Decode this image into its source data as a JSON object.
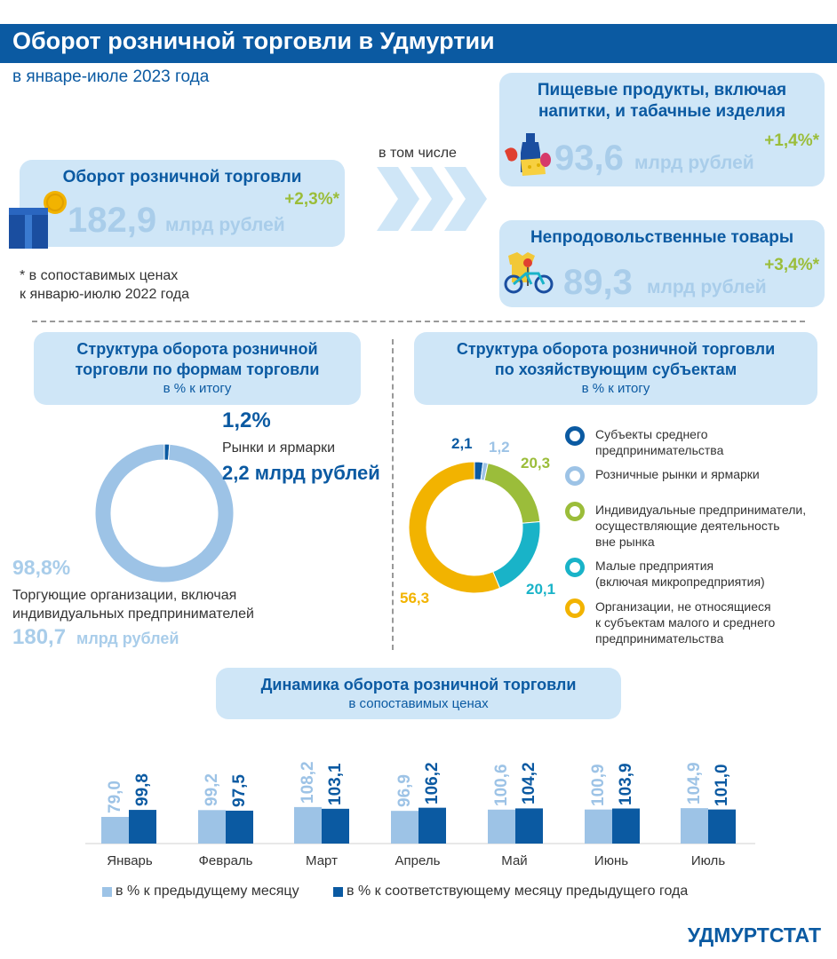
{
  "header": {
    "title": "Оборот розничной торговли в Удмуртии",
    "subtitle": "в январе-июле 2023 года"
  },
  "total": {
    "title": "Оборот розничной торговли",
    "value": "182,9",
    "unit": "млрд рублей",
    "change": "+2,3%*"
  },
  "in_number": "в том числе",
  "food": {
    "title_line1": "Пищевые продукты, включая",
    "title_line2": "напитки, и табачные изделия",
    "value": "93,6",
    "unit": "млрд рублей",
    "change": "+1,4%*"
  },
  "nonfood": {
    "title": "Непродовольственные товары",
    "value": "89,3",
    "unit": "млрд рублей",
    "change": "+3,4%*"
  },
  "footnote": {
    "line1": "* в сопоставимых ценах",
    "line2": "к январю-июлю 2022 года"
  },
  "forms": {
    "title_line1": "Структура оборота розничной",
    "title_line2": "торговли по формам торговли",
    "sub": "в % к итогу",
    "markets_pct": "1,2%",
    "markets_label": "Рынки и ярмарки",
    "markets_value": "2,2 млрд рублей",
    "orgs_pct": "98,8%",
    "orgs_label_line1": "Торгующие организации, включая",
    "orgs_label_line2": "индивидуальных предпринимателей",
    "orgs_value_num": "180,7",
    "orgs_value_unit": "млрд рублей"
  },
  "subjects": {
    "title_line1": "Структура оборота розничной торговли",
    "title_line2": "по хозяйствующим субъектам",
    "sub": "в % к итогу",
    "legend": [
      {
        "line1": "Субъекты среднего",
        "line2": "предпринимательства",
        "line3": "",
        "color": "#0b5aa2"
      },
      {
        "line1": "Розничные рынки и ярмарки",
        "line2": "",
        "line3": "",
        "color": "#9dc3e6"
      },
      {
        "line1": "Индивидуальные предприниматели,",
        "line2": "осуществляющие деятельность",
        "line3": "вне рынка",
        "color": "#9bbd3a"
      },
      {
        "line1": "Малые предприятия",
        "line2": "(включая микропредприятия)",
        "line3": "",
        "color": "#19b3c8"
      },
      {
        "line1": "Организации, не относящиеся",
        "line2": "к субъектам малого и среднего",
        "line3": "предпринимательства",
        "color": "#f2b300"
      }
    ]
  },
  "dynamics": {
    "title": "Динамика оборота розничной торговли",
    "sub": "в сопоставимых ценах",
    "legend_prev_month": "в % к предыдущему месяцу",
    "legend_prev_year": "в % к соответствующему месяцу предыдущего года"
  },
  "footer": "УДМУРТСТАТ",
  "chart_data": [
    {
      "type": "pie",
      "title": "Структура оборота розничной торговли по формам торговли",
      "unit": "в % к итогу",
      "labels": [
        "Рынки и ярмарки",
        "Торгующие организации, включая индивидуальных предпринимателей"
      ],
      "values": [
        1.2,
        98.8
      ],
      "display": [
        "1,2%",
        "98,8%"
      ],
      "colors": [
        "#0b5aa2",
        "#9dc3e6"
      ]
    },
    {
      "type": "pie",
      "title": "Структура оборота розничной торговли по хозяйствующим субъектам",
      "unit": "в % к итогу",
      "labels": [
        "Субъекты среднего предпринимательства",
        "Розничные рынки и ярмарки",
        "Индивидуальные предприниматели, осуществляющие деятельность вне рынка",
        "Малые предприятия (включая микропредприятия)",
        "Организации, не относящиеся к субъектам малого и среднего предпринимательства"
      ],
      "values": [
        2.1,
        1.2,
        20.3,
        20.1,
        56.3
      ],
      "display": [
        "2,1",
        "1,2",
        "20,3",
        "20,1",
        "56,3"
      ],
      "colors": [
        "#0b5aa2",
        "#9dc3e6",
        "#9bbd3a",
        "#19b3c8",
        "#f2b300"
      ]
    },
    {
      "type": "bar",
      "title": "Динамика оборота розничной торговли",
      "subtitle": "в сопоставимых ценах",
      "categories": [
        "Январь",
        "Февраль",
        "Март",
        "Апрель",
        "Май",
        "Июнь",
        "Июль"
      ],
      "series": [
        {
          "name": "в % к предыдущему месяцу",
          "values": [
            79.0,
            99.2,
            108.2,
            96.9,
            100.6,
            100.9,
            104.9
          ],
          "display": [
            "79,0",
            "99,2",
            "108,2",
            "96,9",
            "100,6",
            "100,9",
            "104,9"
          ],
          "color": "#9dc3e6"
        },
        {
          "name": "в % к соответствующему месяцу предыдущего года",
          "values": [
            99.8,
            97.5,
            103.1,
            106.2,
            104.2,
            103.9,
            101.0
          ],
          "display": [
            "99,8",
            "97,5",
            "103,1",
            "106,2",
            "104,2",
            "103,9",
            "101,0"
          ],
          "color": "#0b5aa2"
        }
      ]
    }
  ]
}
